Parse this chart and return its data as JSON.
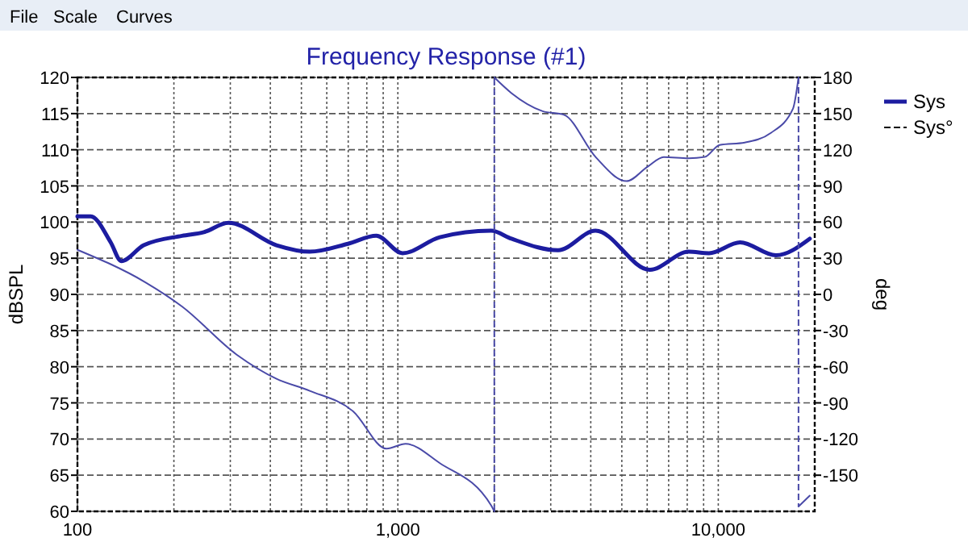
{
  "chart_data": {
    "type": "line",
    "title": "Frequency Response (#1)",
    "ylabel": "dBSPL",
    "y2label": "deg",
    "annotations": [
      "File",
      "Scale",
      "Curves"
    ],
    "log": "x",
    "xlim": [
      100,
      20000
    ],
    "xticks": [
      {
        "value": 100,
        "label": "100"
      },
      {
        "value": 200,
        "label": null
      },
      {
        "value": 300,
        "label": null
      },
      {
        "value": 400,
        "label": null
      },
      {
        "value": 500,
        "label": null
      },
      {
        "value": 600,
        "label": null
      },
      {
        "value": 700,
        "label": null
      },
      {
        "value": 800,
        "label": null
      },
      {
        "value": 900,
        "label": null
      },
      {
        "value": 1000,
        "label": "1,000"
      },
      {
        "value": 2000,
        "label": null
      },
      {
        "value": 3000,
        "label": null
      },
      {
        "value": 4000,
        "label": null
      },
      {
        "value": 5000,
        "label": null
      },
      {
        "value": 6000,
        "label": null
      },
      {
        "value": 7000,
        "label": null
      },
      {
        "value": 8000,
        "label": null
      },
      {
        "value": 9000,
        "label": null
      },
      {
        "value": 10000,
        "label": "10,000"
      }
    ],
    "ylim": [
      60,
      120
    ],
    "yticks": [
      60,
      65,
      70,
      75,
      80,
      85,
      90,
      95,
      100,
      105,
      110,
      115,
      120
    ],
    "y2lim": [
      -180,
      180
    ],
    "y2ticks": [
      -150,
      -120,
      -90,
      -60,
      -30,
      0,
      30,
      60,
      90,
      120,
      150,
      180
    ],
    "grid": true,
    "legend": "right",
    "series": [
      {
        "name": "Sys",
        "color": "#1c1ca0",
        "x": [
          100,
          110,
          127,
          137,
          161,
          212,
          248,
          296,
          418,
          531,
          699,
          857,
          1034,
          1352,
          1954,
          2262,
          3162,
          4140,
          6115,
          8085,
          9355,
          11700,
          15130,
          19300
        ],
        "values": [
          100.8,
          100.8,
          97.2,
          94.6,
          96.8,
          98.1,
          98.6,
          99.9,
          96.8,
          95.9,
          97.0,
          98.1,
          95.7,
          97.9,
          98.8,
          97.7,
          96.1,
          98.8,
          93.4,
          95.9,
          95.7,
          97.2,
          95.4,
          97.7
        ]
      },
      {
        "name": "Sys°",
        "color": "#4a4aa8",
        "axis": "y2",
        "line_style": "dashed",
        "x": [
          100,
          163,
          212,
          314,
          418,
          531,
          725,
          922,
          1057,
          1352,
          1954,
          2000,
          2000,
          2262,
          2830,
          3300,
          4140,
          5170,
          6020,
          6760,
          8085,
          9070,
          10100,
          12100,
          14600,
          17100,
          17800,
          17800,
          19300
        ],
        "values": [
          37,
          10,
          -10,
          -50,
          -70,
          -80,
          -97,
          -128,
          -124,
          -140,
          -175,
          -180,
          180,
          167,
          152,
          149,
          114,
          94,
          106,
          114,
          113,
          114,
          124,
          126,
          134,
          154,
          180,
          -176,
          -167
        ]
      }
    ]
  }
}
